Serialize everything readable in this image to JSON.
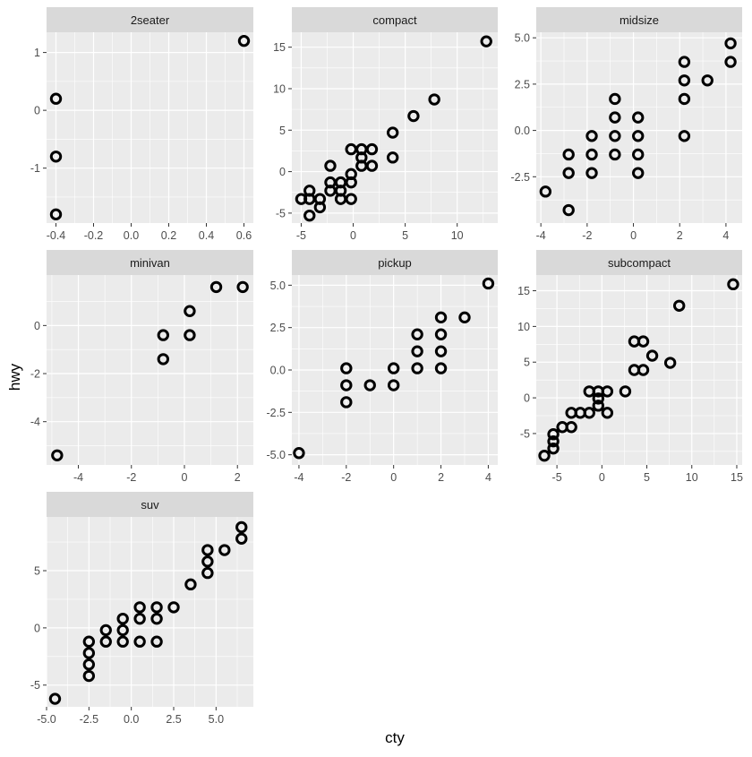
{
  "chart_data": {
    "type": "scatter",
    "xlabel": "cty",
    "ylabel": "hwy",
    "marker": "open-circle",
    "colors": {
      "panel_background": "#ebebeb",
      "grid_major": "#ffffff",
      "strip_background": "#d9d9d9",
      "points": "#000000",
      "axis_text": "#4d4d4d",
      "title_text": "#000000"
    },
    "facets": [
      {
        "name": "2seater",
        "xlim": [
          -0.45,
          0.65
        ],
        "ylim": [
          -1.95,
          1.35
        ],
        "xticks": [
          -0.4,
          -0.2,
          0.0,
          0.2,
          0.4,
          0.6
        ],
        "xtick_labels": [
          "-0.4",
          "-0.2",
          "0.0",
          "0.2",
          "0.4",
          "0.6"
        ],
        "yticks": [
          -1,
          0,
          1
        ],
        "ytick_labels": [
          "-1",
          "0",
          "1"
        ],
        "points": [
          [
            -0.4,
            0.2
          ],
          [
            -0.4,
            -0.8
          ],
          [
            -0.4,
            -1.8
          ],
          [
            0.6,
            1.2
          ]
        ]
      },
      {
        "name": "compact",
        "xlim": [
          -5.9,
          13.9
        ],
        "ylim": [
          -6.2,
          16.8
        ],
        "xticks": [
          -5,
          0,
          5,
          10
        ],
        "xtick_labels": [
          "-5",
          "0",
          "5",
          "10"
        ],
        "yticks": [
          -5,
          0,
          5,
          10,
          15
        ],
        "ytick_labels": [
          "-5",
          "0",
          "5",
          "10",
          "15"
        ],
        "points": [
          [
            -5,
            -3.3
          ],
          [
            -4.2,
            -3.3
          ],
          [
            -4.2,
            -2.3
          ],
          [
            -4.2,
            -5.3
          ],
          [
            -3.2,
            -3.3
          ],
          [
            -3.2,
            -4.3
          ],
          [
            -2.2,
            -1.3
          ],
          [
            -2.2,
            -2.3
          ],
          [
            -2.2,
            0.7
          ],
          [
            -1.2,
            -1.3
          ],
          [
            -1.2,
            -2.3
          ],
          [
            -1.2,
            -3.3
          ],
          [
            -0.2,
            -1.3
          ],
          [
            -0.2,
            -3.3
          ],
          [
            -0.2,
            -0.3
          ],
          [
            -0.2,
            2.7
          ],
          [
            0.8,
            0.7
          ],
          [
            0.8,
            1.7
          ],
          [
            0.8,
            2.7
          ],
          [
            1.8,
            0.7
          ],
          [
            1.8,
            2.7
          ],
          [
            3.8,
            1.7
          ],
          [
            3.8,
            4.7
          ],
          [
            5.8,
            6.7
          ],
          [
            7.8,
            8.7
          ],
          [
            12.8,
            15.7
          ]
        ]
      },
      {
        "name": "midsize",
        "xlim": [
          -4.2,
          4.7
        ],
        "ylim": [
          -5.0,
          5.3
        ],
        "xticks": [
          -4,
          -2,
          0,
          2,
          4
        ],
        "xtick_labels": [
          "-4",
          "-2",
          "0",
          "2",
          "4"
        ],
        "yticks": [
          -2.5,
          0.0,
          2.5,
          5.0
        ],
        "ytick_labels": [
          "-2.5",
          "0.0",
          "2.5",
          "5.0"
        ],
        "points": [
          [
            -3.8,
            -3.3
          ],
          [
            -2.8,
            -4.3
          ],
          [
            -2.8,
            -2.3
          ],
          [
            -2.8,
            -1.3
          ],
          [
            -1.8,
            -2.3
          ],
          [
            -1.8,
            -1.3
          ],
          [
            -1.8,
            -0.3
          ],
          [
            -0.8,
            -1.3
          ],
          [
            -0.8,
            -0.3
          ],
          [
            -0.8,
            0.7
          ],
          [
            -0.8,
            1.7
          ],
          [
            0.2,
            -2.3
          ],
          [
            0.2,
            -1.3
          ],
          [
            0.2,
            -0.3
          ],
          [
            0.2,
            0.7
          ],
          [
            2.2,
            -0.3
          ],
          [
            2.2,
            1.7
          ],
          [
            2.2,
            2.7
          ],
          [
            2.2,
            3.7
          ],
          [
            3.2,
            2.7
          ],
          [
            4.2,
            3.7
          ],
          [
            4.2,
            4.7
          ]
        ]
      },
      {
        "name": "minivan",
        "xlim": [
          -5.2,
          2.6
        ],
        "ylim": [
          -5.8,
          2.1
        ],
        "xticks": [
          -4,
          -2,
          0,
          2
        ],
        "xtick_labels": [
          "-4",
          "-2",
          "0",
          "2"
        ],
        "yticks": [
          -4,
          -2,
          0
        ],
        "ytick_labels": [
          "-4",
          "-2",
          "0"
        ],
        "points": [
          [
            -4.8,
            -5.4
          ],
          [
            -0.8,
            -1.4
          ],
          [
            -0.8,
            -0.4
          ],
          [
            0.2,
            -0.4
          ],
          [
            0.2,
            0.6
          ],
          [
            1.2,
            1.6
          ],
          [
            2.2,
            1.6
          ]
        ]
      },
      {
        "name": "pickup",
        "xlim": [
          -4.3,
          4.4
        ],
        "ylim": [
          -5.6,
          5.6
        ],
        "xticks": [
          -4,
          -2,
          0,
          2,
          4
        ],
        "xtick_labels": [
          "-4",
          "-2",
          "0",
          "2",
          "4"
        ],
        "yticks": [
          -5.0,
          -2.5,
          0.0,
          2.5,
          5.0
        ],
        "ytick_labels": [
          "-5.0",
          "-2.5",
          "0.0",
          "2.5",
          "5.0"
        ],
        "points": [
          [
            -4,
            -4.9
          ],
          [
            -2,
            -1.9
          ],
          [
            -2,
            -0.9
          ],
          [
            -2,
            0.1
          ],
          [
            -1,
            -0.9
          ],
          [
            0,
            -0.9
          ],
          [
            0,
            0.1
          ],
          [
            1,
            0.1
          ],
          [
            1,
            1.1
          ],
          [
            1,
            2.1
          ],
          [
            2,
            0.1
          ],
          [
            2,
            1.1
          ],
          [
            2,
            2.1
          ],
          [
            2,
            3.1
          ],
          [
            3,
            3.1
          ],
          [
            4,
            5.1
          ]
        ]
      },
      {
        "name": "subcompact",
        "xlim": [
          -7.3,
          15.6
        ],
        "ylim": [
          -9.4,
          17.2
        ],
        "xticks": [
          -5,
          0,
          5,
          10,
          15
        ],
        "xtick_labels": [
          "-5",
          "0",
          "5",
          "10",
          "15"
        ],
        "yticks": [
          -5,
          0,
          5,
          10,
          15
        ],
        "ytick_labels": [
          "-5",
          "0",
          "5",
          "10",
          "15"
        ],
        "points": [
          [
            -6.4,
            -8.1
          ],
          [
            -5.4,
            -5.1
          ],
          [
            -5.4,
            -6.1
          ],
          [
            -5.4,
            -7.1
          ],
          [
            -4.4,
            -4.1
          ],
          [
            -3.4,
            -4.1
          ],
          [
            -3.4,
            -2.1
          ],
          [
            -2.4,
            -2.1
          ],
          [
            -1.4,
            -2.1
          ],
          [
            -1.4,
            0.9
          ],
          [
            -0.4,
            -1.1
          ],
          [
            -0.4,
            -0.1
          ],
          [
            -0.4,
            0.9
          ],
          [
            0.6,
            -2.1
          ],
          [
            0.6,
            0.9
          ],
          [
            2.6,
            0.9
          ],
          [
            3.6,
            3.9
          ],
          [
            3.6,
            7.9
          ],
          [
            4.6,
            3.9
          ],
          [
            4.6,
            7.9
          ],
          [
            5.6,
            5.9
          ],
          [
            7.6,
            4.9
          ],
          [
            8.6,
            12.9
          ],
          [
            14.6,
            15.9
          ]
        ]
      },
      {
        "name": "suv",
        "xlim": [
          -5.0,
          7.2
        ],
        "ylim": [
          -6.9,
          9.7
        ],
        "xticks": [
          -5.0,
          -2.5,
          0.0,
          2.5,
          5.0
        ],
        "xtick_labels": [
          "-5.0",
          "-2.5",
          "0.0",
          "2.5",
          "5.0"
        ],
        "yticks": [
          -5,
          0,
          5
        ],
        "ytick_labels": [
          "-5",
          "0",
          "5"
        ],
        "points": [
          [
            -4.5,
            -6.2
          ],
          [
            -2.5,
            -4.2
          ],
          [
            -2.5,
            -3.2
          ],
          [
            -2.5,
            -2.2
          ],
          [
            -2.5,
            -1.2
          ],
          [
            -1.5,
            -1.2
          ],
          [
            -1.5,
            -0.2
          ],
          [
            -0.5,
            -1.2
          ],
          [
            -0.5,
            -0.2
          ],
          [
            -0.5,
            0.8
          ],
          [
            0.5,
            -1.2
          ],
          [
            0.5,
            0.8
          ],
          [
            0.5,
            1.8
          ],
          [
            1.5,
            -1.2
          ],
          [
            1.5,
            0.8
          ],
          [
            1.5,
            1.8
          ],
          [
            2.5,
            1.8
          ],
          [
            3.5,
            3.8
          ],
          [
            4.5,
            4.8
          ],
          [
            4.5,
            5.8
          ],
          [
            4.5,
            6.8
          ],
          [
            5.5,
            6.8
          ],
          [
            6.5,
            7.8
          ],
          [
            6.5,
            8.8
          ]
        ]
      }
    ]
  }
}
